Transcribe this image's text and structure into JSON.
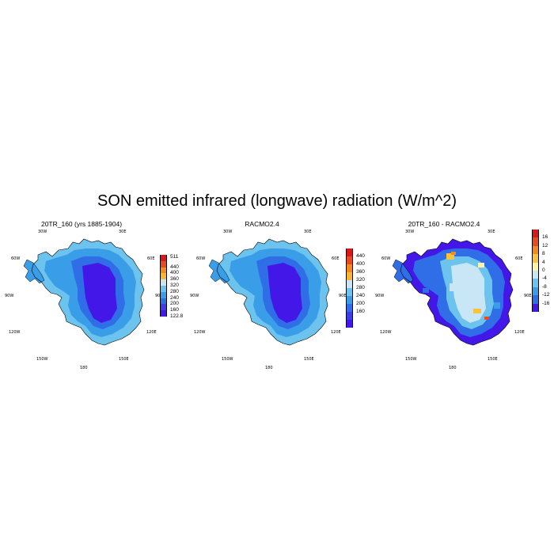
{
  "figure": {
    "title": "SON emitted infrared (longwave) radiation (W/m^2)"
  },
  "panels": [
    {
      "id": "panel-20tr",
      "title": "20TR_160 (yrs 1885-1904)",
      "lon_labels": {
        "top_left": "30W",
        "top_right": "30E",
        "left_upper": "60W",
        "right_upper": "60E",
        "left_mid": "90W",
        "right_mid": "90E",
        "left_lower": "120W",
        "right_lower": "120E",
        "bottom_left": "150W",
        "bottom_right": "150E",
        "bottom": "180"
      },
      "colorbar": {
        "labels": [
          "511",
          "440",
          "400",
          "360",
          "320",
          "280",
          "240",
          "200",
          "160",
          "122.8"
        ],
        "colors": [
          "#d7191c",
          "#ea4a22",
          "#f28a1d",
          "#f7b733",
          "#c8e6f5",
          "#6cc3ee",
          "#3a9de8",
          "#2f6ee6",
          "#3c3fe6",
          "#4317e8"
        ]
      },
      "palette": {
        "coast": "#3a9de8",
        "mid": "#2f6ee6",
        "interior": "#4317e8",
        "fringe": "#6cc3ee"
      }
    },
    {
      "id": "panel-racmo",
      "title": "RACMO2.4",
      "lon_labels": {
        "top_left": "30W",
        "top_right": "30E",
        "left_upper": "60W",
        "right_upper": "60E",
        "left_mid": "90W",
        "right_mid": "90E",
        "left_lower": "120W",
        "right_lower": "120E",
        "bottom_left": "150W",
        "bottom_right": "150E",
        "bottom": "180"
      },
      "colorbar": {
        "labels": [
          "440",
          "400",
          "360",
          "320",
          "280",
          "240",
          "200",
          "160"
        ],
        "colors": [
          "#d7191c",
          "#ea4a22",
          "#f28a1d",
          "#f7b733",
          "#c8e6f5",
          "#6cc3ee",
          "#3a9de8",
          "#2f6ee6",
          "#3c3fe6",
          "#4317e8"
        ]
      },
      "palette": {
        "coast": "#3a9de8",
        "mid": "#2f6ee6",
        "interior": "#4317e8",
        "fringe": "#6cc3ee"
      }
    },
    {
      "id": "panel-diff",
      "title": "20TR_160 - RACMO2.4",
      "lon_labels": {
        "top_left": "30W",
        "top_right": "30E",
        "left_upper": "60W",
        "right_upper": "60E",
        "left_mid": "90W",
        "right_mid": "90E",
        "left_lower": "120W",
        "right_lower": "120E",
        "bottom_left": "150W",
        "bottom_right": "150E",
        "bottom": "180"
      },
      "colorbar": {
        "labels": [
          "16",
          "12",
          "8",
          "4",
          "0",
          "-4",
          "-8",
          "-12",
          "-16"
        ],
        "colors": [
          "#d7191c",
          "#ea4a22",
          "#f28a1d",
          "#f7c23c",
          "#fff3a8",
          "#c8e6f5",
          "#6cc3ee",
          "#3a9de8",
          "#2f6ee6",
          "#4317e8"
        ]
      },
      "palette": {
        "coast": "#2f6ee6",
        "mid": "#6cc3ee",
        "interior": "#c8e6f5",
        "fringe": "#4317e8"
      }
    }
  ]
}
